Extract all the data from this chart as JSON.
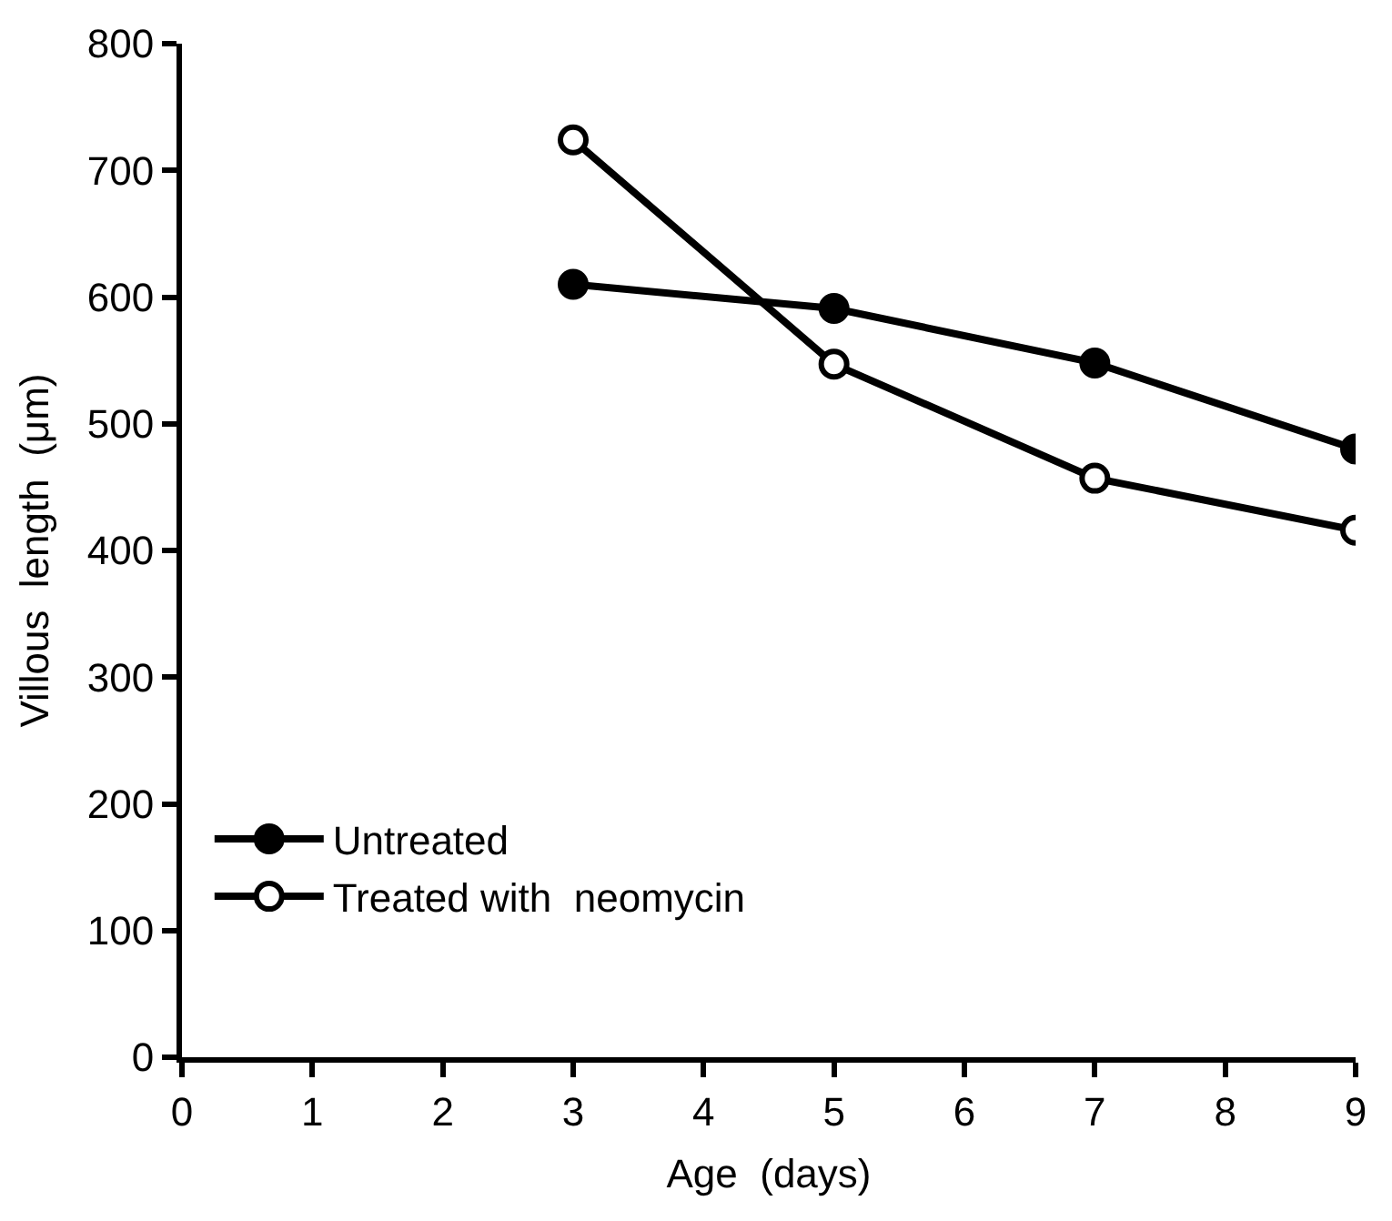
{
  "chart_data": {
    "type": "line",
    "xlabel": "Age  (days)",
    "ylabel": "Villous  length  (μm)",
    "x": [
      3,
      5,
      7,
      9
    ],
    "series": [
      {
        "name": "Untreated",
        "color": "#000000",
        "marker": "circle",
        "values": [
          610,
          591,
          548,
          480
        ]
      },
      {
        "name": "Treated with  neomycin",
        "color": "#000000",
        "marker": "circle",
        "colors": [
          "#ffffff",
          "#ffffff",
          "#ffffff",
          "#ffffff"
        ],
        "values": [
          724,
          547,
          457,
          416
        ]
      }
    ],
    "xlim": [
      0,
      9
    ],
    "xticks": [
      0,
      1,
      2,
      3,
      4,
      5,
      6,
      7,
      8,
      9
    ],
    "ylim": [
      0,
      800
    ],
    "yticks": [
      0,
      100,
      200,
      300,
      400,
      500,
      600,
      700,
      800
    ],
    "legend": "bottom left",
    "line_style": "solid"
  }
}
